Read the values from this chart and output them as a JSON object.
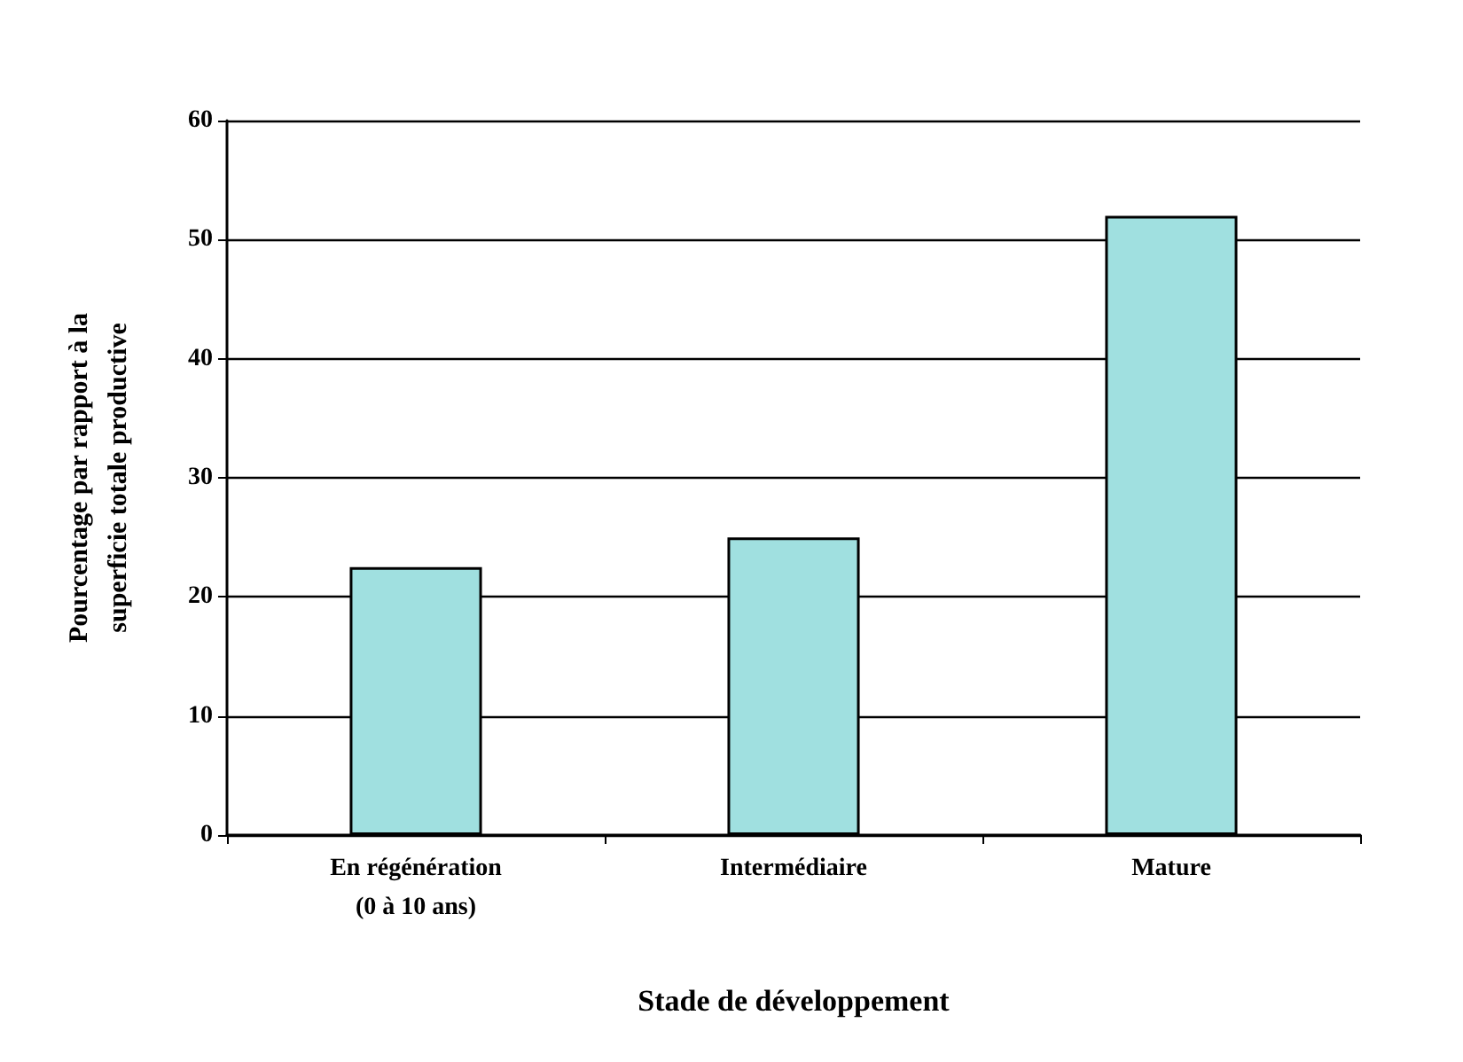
{
  "chart_data": {
    "type": "bar",
    "xlabel": "Stade de développement",
    "ylabel": "Pourcentage par rapport à la\nsuperficie totale productive",
    "categories": [
      "En régénération\n(0 à 10 ans)",
      "Intermédiaire",
      "Mature"
    ],
    "values": [
      22.5,
      25,
      52
    ],
    "color": "#a0e0e0",
    "ylim": [
      0,
      60
    ],
    "yticks": [
      0,
      10,
      20,
      30,
      40,
      50,
      60
    ],
    "grid": "y"
  }
}
